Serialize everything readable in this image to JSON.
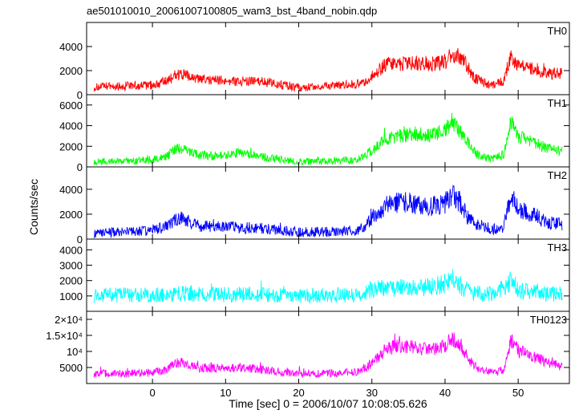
{
  "chart_data": {
    "type": "line",
    "title": "ae501010010_20061007100805_wam3_bst_4band_nobin.qdp",
    "xlabel": "Time [sec] 0 = 2006/10/07 10:08:05.626",
    "ylabel": "Counts/sec",
    "xlim": [
      -9,
      57
    ],
    "x_ticks": [
      "0",
      "10",
      "20",
      "30",
      "40",
      "50"
    ],
    "grid": false,
    "panels": [
      {
        "name": "TH0",
        "color": "#ff0000",
        "ylim": [
          0,
          6000
        ],
        "y_ticks": [
          {
            "v": 0,
            "label": "0"
          },
          {
            "v": 2000,
            "label": "2000"
          },
          {
            "v": 4000,
            "label": "4000"
          }
        ],
        "x": [
          -8,
          -6,
          -4,
          -2,
          0,
          2,
          3,
          4,
          6,
          8,
          10,
          12,
          14,
          16,
          18,
          20,
          22,
          24,
          26,
          28,
          29,
          30,
          32,
          34,
          36,
          38,
          40,
          41,
          42,
          43,
          44,
          46,
          47,
          48,
          49,
          50,
          52,
          54,
          56
        ],
        "values": [
          600,
          700,
          700,
          750,
          800,
          1100,
          1600,
          1700,
          1300,
          1200,
          1200,
          1100,
          1100,
          1000,
          800,
          600,
          650,
          700,
          800,
          900,
          1100,
          1500,
          2600,
          2500,
          2600,
          2500,
          2800,
          2900,
          3300,
          2400,
          1400,
          800,
          900,
          1100,
          3200,
          2400,
          2200,
          1800,
          1700
        ],
        "noise": 500
      },
      {
        "name": "TH1",
        "color": "#00ff00",
        "ylim": [
          0,
          7000
        ],
        "y_ticks": [
          {
            "v": 0,
            "label": "0"
          },
          {
            "v": 2000,
            "label": "2000"
          },
          {
            "v": 4000,
            "label": "4000"
          },
          {
            "v": 6000,
            "label": "6000"
          }
        ],
        "x": [
          -8,
          -6,
          -4,
          -2,
          0,
          2,
          3,
          4,
          6,
          8,
          10,
          12,
          14,
          16,
          18,
          20,
          22,
          24,
          26,
          28,
          29,
          30,
          32,
          34,
          36,
          38,
          40,
          41,
          42,
          43,
          44,
          46,
          47,
          48,
          49,
          50,
          52,
          54,
          56
        ],
        "values": [
          500,
          550,
          550,
          600,
          700,
          1000,
          1700,
          1800,
          1200,
          1100,
          1100,
          1400,
          1000,
          900,
          700,
          500,
          550,
          550,
          600,
          700,
          1000,
          1600,
          2800,
          3000,
          3200,
          3100,
          3500,
          4500,
          3500,
          2500,
          1300,
          800,
          900,
          1200,
          4500,
          3000,
          2500,
          1800,
          1500
        ],
        "noise": 550
      },
      {
        "name": "TH2",
        "color": "#0000ff",
        "ylim": [
          0,
          5800
        ],
        "y_ticks": [
          {
            "v": 0,
            "label": "0"
          },
          {
            "v": 2000,
            "label": "2000"
          },
          {
            "v": 4000,
            "label": "4000"
          }
        ],
        "x": [
          -8,
          -6,
          -4,
          -2,
          0,
          2,
          3,
          4,
          6,
          8,
          10,
          12,
          14,
          16,
          18,
          20,
          22,
          24,
          26,
          28,
          29,
          30,
          32,
          34,
          36,
          38,
          40,
          41,
          42,
          43,
          44,
          46,
          47,
          48,
          49,
          50,
          52,
          54,
          56
        ],
        "values": [
          500,
          550,
          550,
          600,
          700,
          1000,
          1500,
          1700,
          1100,
          1000,
          1000,
          900,
          900,
          800,
          700,
          550,
          600,
          600,
          650,
          700,
          1000,
          1700,
          2700,
          3000,
          2800,
          2600,
          2900,
          3500,
          3000,
          1800,
          1200,
          900,
          800,
          1000,
          3500,
          2400,
          2000,
          1300,
          1200
        ],
        "noise": 600
      },
      {
        "name": "TH3",
        "color": "#00ffff",
        "ylim": [
          0,
          4700
        ],
        "y_ticks": [
          {
            "v": 1000,
            "label": "1000"
          },
          {
            "v": 2000,
            "label": "2000"
          },
          {
            "v": 3000,
            "label": "3000"
          },
          {
            "v": 4000,
            "label": "4000"
          }
        ],
        "x": [
          -8,
          -6,
          -4,
          -2,
          0,
          2,
          4,
          6,
          8,
          10,
          12,
          14,
          16,
          18,
          20,
          22,
          24,
          26,
          28,
          30,
          32,
          34,
          36,
          38,
          40,
          41,
          42,
          43,
          44,
          46,
          48,
          49,
          50,
          52,
          54,
          56
        ],
        "values": [
          1000,
          1050,
          1050,
          1050,
          1050,
          1100,
          1150,
          1100,
          1100,
          1100,
          1100,
          1050,
          1050,
          1050,
          1000,
          1000,
          1050,
          1050,
          1100,
          1400,
          1500,
          1500,
          1500,
          1600,
          1800,
          2100,
          1700,
          1400,
          1200,
          1100,
          1500,
          2000,
          1400,
          1300,
          1100,
          1100
        ],
        "noise": 550
      },
      {
        "name": "TH0123",
        "color": "#ff00ff",
        "ylim": [
          0,
          22500
        ],
        "y_ticks": [
          {
            "v": 5000,
            "label": "5000"
          },
          {
            "v": 10000,
            "label": "10⁴"
          },
          {
            "v": 15000,
            "label": "1.5×10⁴"
          },
          {
            "v": 20000,
            "label": "2×10⁴"
          }
        ],
        "x": [
          -8,
          -6,
          -4,
          -2,
          0,
          2,
          3,
          4,
          6,
          8,
          10,
          12,
          14,
          16,
          18,
          20,
          22,
          24,
          26,
          28,
          29,
          30,
          32,
          34,
          36,
          38,
          40,
          41,
          42,
          43,
          44,
          46,
          47,
          48,
          49,
          50,
          52,
          54,
          56
        ],
        "values": [
          3000,
          3100,
          3100,
          3200,
          3400,
          4400,
          6200,
          6500,
          4900,
          4800,
          5000,
          4900,
          4600,
          4100,
          3500,
          3000,
          3100,
          3100,
          3300,
          3600,
          4400,
          6400,
          10800,
          12000,
          11200,
          10600,
          12000,
          14000,
          12500,
          8500,
          5300,
          3700,
          3500,
          4500,
          13500,
          10300,
          8500,
          6500,
          5500
        ],
        "noise": 1600
      }
    ]
  }
}
